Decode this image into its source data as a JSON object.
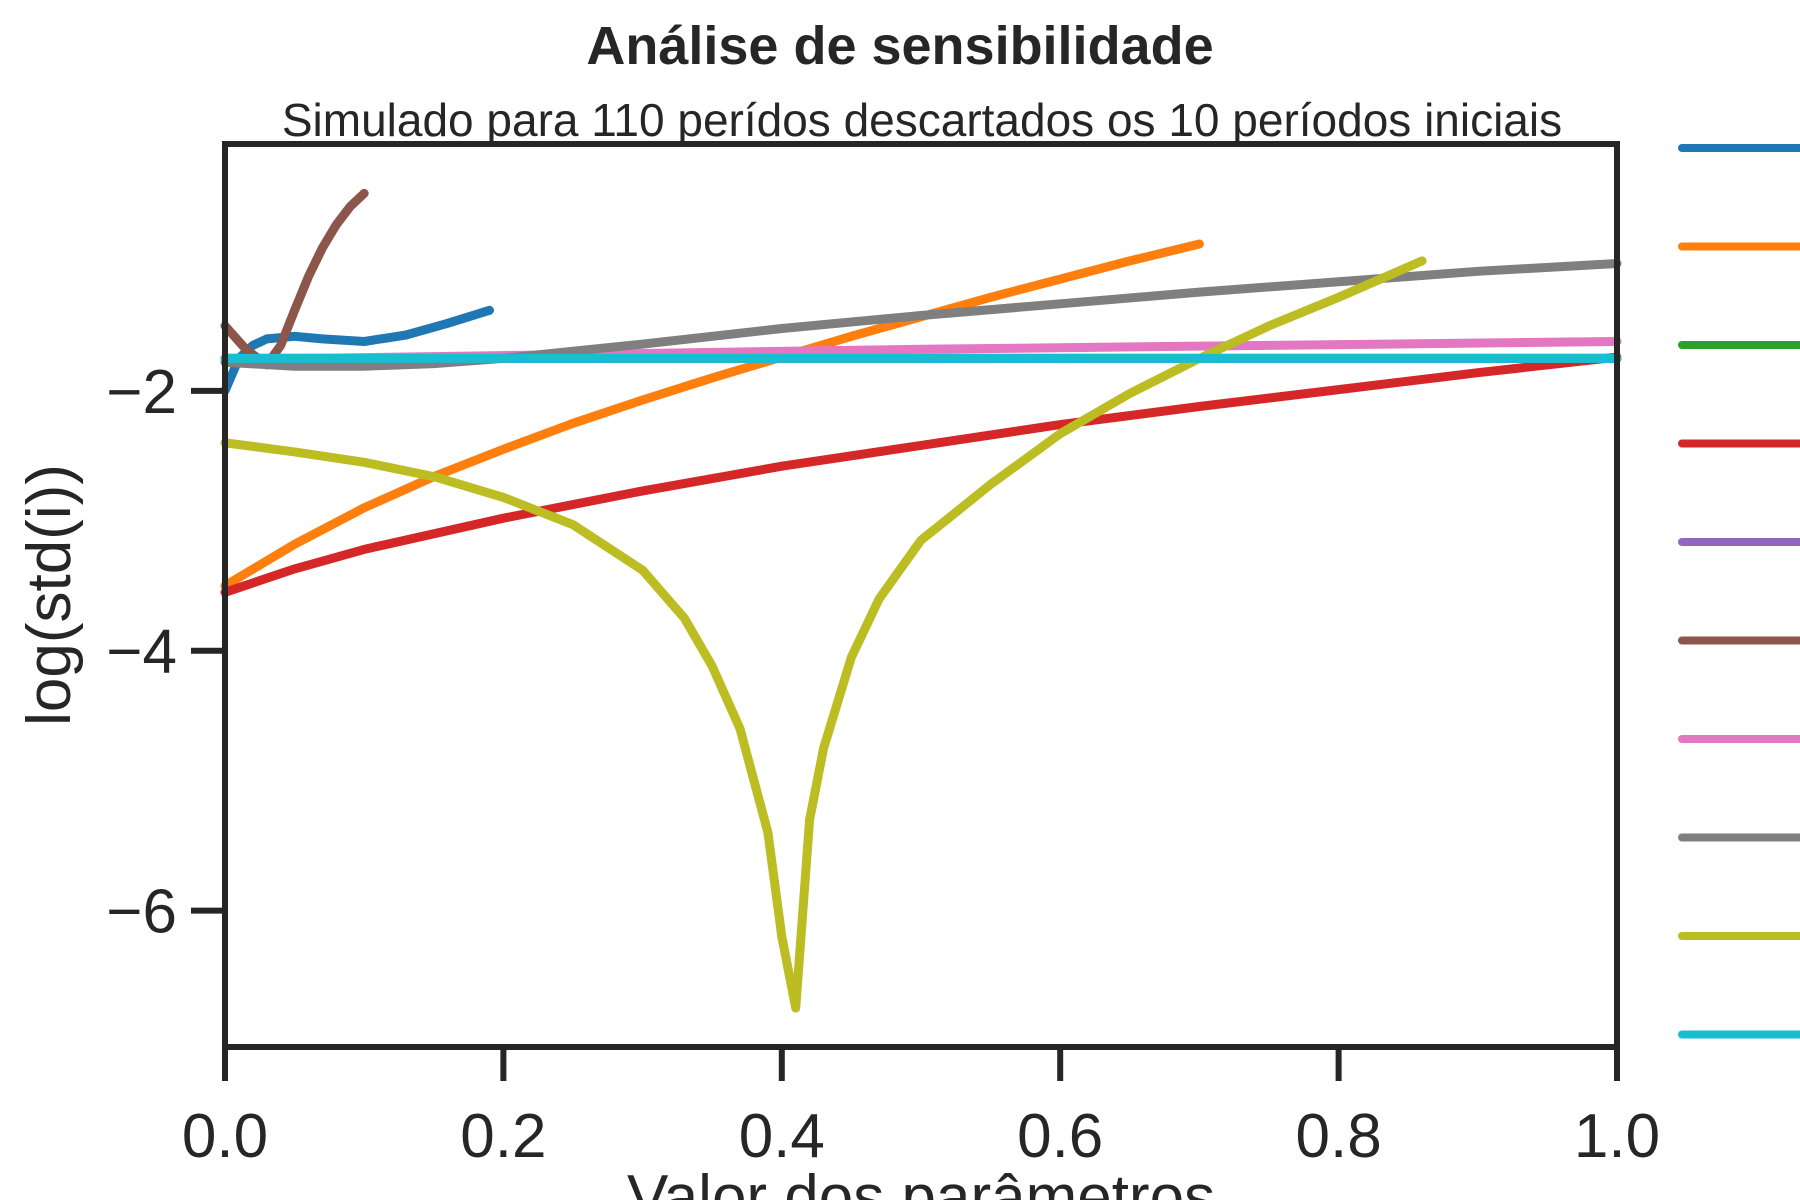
{
  "chart_data": {
    "type": "line",
    "title": "Análise de sensibilidade",
    "subtitle": "Simulado para 110 perídos descartados os 10 períodos iniciais",
    "xlabel": "Valor dos parâmetros",
    "ylabel": "log(std(i))",
    "xlim": [
      0.0,
      1.0
    ],
    "ylim": [
      -7.05,
      -0.1
    ],
    "xticks": [
      0.0,
      0.2,
      0.4,
      0.6,
      0.8,
      1.0
    ],
    "xtick_labels": [
      "0.0",
      "0.2",
      "0.4",
      "0.6",
      "0.8",
      "1.0"
    ],
    "yticks": [
      -2,
      -4,
      -6
    ],
    "ytick_labels": [
      "−2",
      "−4",
      "−6"
    ],
    "grid": false,
    "legend_position": "right",
    "series": [
      {
        "color": "#1f77b4",
        "x": [
          0.0,
          0.01,
          0.02,
          0.03,
          0.05,
          0.07,
          0.1,
          0.13,
          0.16,
          0.19
        ],
        "y": [
          -2.0,
          -1.75,
          -1.65,
          -1.6,
          -1.58,
          -1.6,
          -1.62,
          -1.57,
          -1.48,
          -1.38
        ]
      },
      {
        "color": "#ff7f0e",
        "x": [
          0.0,
          0.05,
          0.1,
          0.15,
          0.2,
          0.25,
          0.3,
          0.35,
          0.4,
          0.45,
          0.5,
          0.55,
          0.6,
          0.65,
          0.7
        ],
        "y": [
          -3.5,
          -3.18,
          -2.9,
          -2.66,
          -2.45,
          -2.25,
          -2.07,
          -1.9,
          -1.74,
          -1.58,
          -1.43,
          -1.28,
          -1.14,
          -1.0,
          -0.87
        ]
      },
      {
        "color": "#2ca02c",
        "x": [
          0.0,
          1.0
        ],
        "y": [
          -1.75,
          -1.75
        ]
      },
      {
        "color": "#d62728",
        "x": [
          0.0,
          0.05,
          0.1,
          0.2,
          0.3,
          0.4,
          0.5,
          0.6,
          0.7,
          0.8,
          0.9,
          1.0
        ],
        "y": [
          -3.55,
          -3.37,
          -3.22,
          -2.98,
          -2.77,
          -2.58,
          -2.42,
          -2.26,
          -2.12,
          -1.99,
          -1.86,
          -1.74
        ]
      },
      {
        "color": "#9467bd",
        "x": [
          0.0,
          1.0
        ],
        "y": [
          -1.75,
          -1.75
        ]
      },
      {
        "color": "#8c564b",
        "x": [
          0.0,
          0.015,
          0.03,
          0.04,
          0.05,
          0.06,
          0.07,
          0.08,
          0.09,
          0.1
        ],
        "y": [
          -1.5,
          -1.68,
          -1.8,
          -1.65,
          -1.38,
          -1.12,
          -0.9,
          -0.72,
          -0.58,
          -0.48
        ]
      },
      {
        "color": "#e377c2",
        "x": [
          0.0,
          0.25,
          0.5,
          0.75,
          1.0
        ],
        "y": [
          -1.76,
          -1.72,
          -1.68,
          -1.65,
          -1.62
        ]
      },
      {
        "color": "#7f7f7f",
        "x": [
          0.0,
          0.05,
          0.1,
          0.15,
          0.2,
          0.3,
          0.4,
          0.5,
          0.6,
          0.7,
          0.8,
          0.9,
          1.0
        ],
        "y": [
          -1.78,
          -1.81,
          -1.81,
          -1.79,
          -1.75,
          -1.64,
          -1.52,
          -1.42,
          -1.33,
          -1.24,
          -1.16,
          -1.08,
          -1.02
        ]
      },
      {
        "color": "#bcbd22",
        "x": [
          0.0,
          0.05,
          0.1,
          0.15,
          0.2,
          0.25,
          0.3,
          0.33,
          0.35,
          0.37,
          0.39,
          0.4,
          0.41,
          0.42,
          0.43,
          0.45,
          0.47,
          0.5,
          0.55,
          0.6,
          0.65,
          0.7,
          0.75,
          0.8,
          0.86
        ],
        "y": [
          -2.4,
          -2.47,
          -2.55,
          -2.66,
          -2.82,
          -3.03,
          -3.38,
          -3.75,
          -4.12,
          -4.6,
          -5.4,
          -6.2,
          -6.75,
          -5.3,
          -4.75,
          -4.05,
          -3.6,
          -3.15,
          -2.72,
          -2.33,
          -2.02,
          -1.75,
          -1.5,
          -1.28,
          -1.0
        ]
      },
      {
        "color": "#17becf",
        "x": [
          0.0,
          1.0
        ],
        "y": [
          -1.75,
          -1.75
        ]
      }
    ]
  }
}
